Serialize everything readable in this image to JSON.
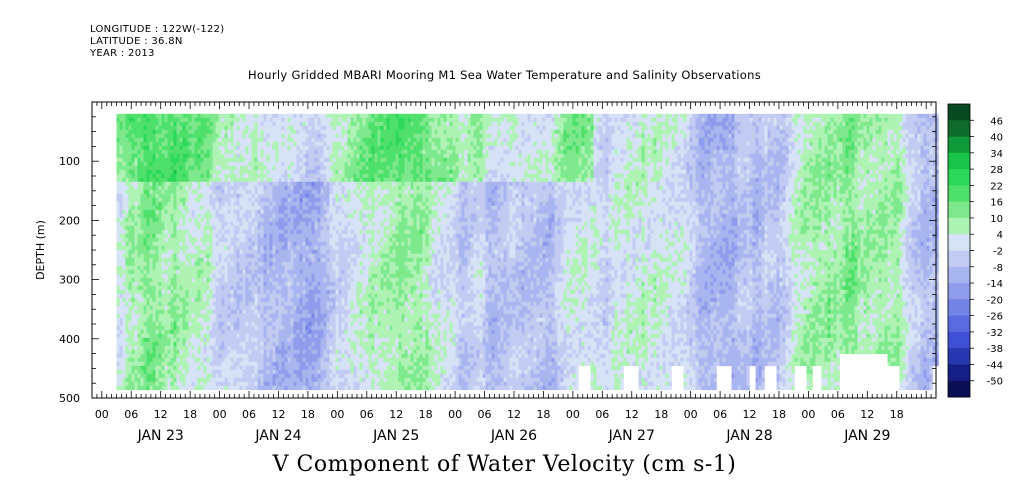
{
  "header": {
    "longitude": "LONGITUDE : 122W(-122)",
    "latitude": "LATITUDE : 36.8N",
    "year": "YEAR : 2013",
    "title": "Hourly Gridded MBARI Mooring M1 Sea Water Temperature and Salinity Observations"
  },
  "chart_data": {
    "type": "heatmap",
    "title": "Hourly Gridded MBARI Mooring M1 Sea Water Temperature and Salinity Observations",
    "xlabel": "V Component of Water Velocity (cm s-1)",
    "ylabel": "DEPTH (m)",
    "x_range_hours": [
      0,
      168
    ],
    "y_range_m": [
      500,
      0
    ],
    "y_ticks": [
      100,
      200,
      300,
      400,
      500
    ],
    "x_hour_ticks": [
      "00",
      "06",
      "12",
      "18",
      "00",
      "06",
      "12",
      "18",
      "00",
      "06",
      "12",
      "18",
      "00",
      "06",
      "12",
      "18",
      "00",
      "06",
      "12",
      "18",
      "00",
      "06",
      "12",
      "18",
      "00",
      "06",
      "12",
      "18"
    ],
    "x_day_labels": [
      "JAN 23",
      "JAN 24",
      "JAN 25",
      "JAN 26",
      "JAN 27",
      "JAN 28",
      "JAN 29"
    ],
    "data_extent": {
      "start_hour": 3,
      "end_hour": 170,
      "top_depth_m": 20,
      "bottom_depth_m": 485
    },
    "colorbar_levels": [
      46,
      40,
      34,
      28,
      22,
      16,
      10,
      4,
      -2,
      -8,
      -14,
      -20,
      -26,
      -32,
      -38,
      -44,
      -50
    ],
    "colorbar_colors": [
      "#0a4a22",
      "#0e6b2c",
      "#119a3a",
      "#1ac44a",
      "#2dd75a",
      "#4fe06c",
      "#7de98c",
      "#aef2b4",
      "#d6e2f6",
      "#c2ccf2",
      "#a9b5ef",
      "#8f9cea",
      "#7484e6",
      "#5a6be0",
      "#3f50d4",
      "#2838b0",
      "#161f85",
      "#0a0e55"
    ],
    "grid": false,
    "colorbar_position": "right"
  }
}
